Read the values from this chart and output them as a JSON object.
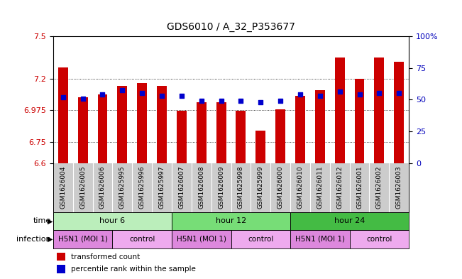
{
  "title": "GDS6010 / A_32_P353677",
  "samples": [
    "GSM1626004",
    "GSM1626005",
    "GSM1626006",
    "GSM1625995",
    "GSM1625996",
    "GSM1625997",
    "GSM1626007",
    "GSM1626008",
    "GSM1626009",
    "GSM1625998",
    "GSM1625999",
    "GSM1626000",
    "GSM1626010",
    "GSM1626011",
    "GSM1626012",
    "GSM1626001",
    "GSM1626002",
    "GSM1626003"
  ],
  "bar_values": [
    7.28,
    7.07,
    7.09,
    7.15,
    7.17,
    7.15,
    6.97,
    7.03,
    7.03,
    6.97,
    6.83,
    6.98,
    7.08,
    7.12,
    7.35,
    7.2,
    7.35,
    7.32
  ],
  "dot_values": [
    7.07,
    7.06,
    7.09,
    7.12,
    7.1,
    7.08,
    7.08,
    7.04,
    7.04,
    7.04,
    7.03,
    7.04,
    7.09,
    7.08,
    7.11,
    7.09,
    7.1,
    7.1
  ],
  "y_min": 6.6,
  "y_max": 7.5,
  "y_ticks_left": [
    6.6,
    6.75,
    6.975,
    7.2,
    7.5
  ],
  "y_right_labels": [
    "0",
    "25",
    "50",
    "75",
    "100%"
  ],
  "y_right_pcts": [
    0,
    25,
    50,
    75,
    100
  ],
  "bar_color": "#cc0000",
  "dot_color": "#0000cc",
  "time_groups": [
    {
      "label": "hour 6",
      "start": 0,
      "end": 6,
      "color": "#bbeebb"
    },
    {
      "label": "hour 12",
      "start": 6,
      "end": 12,
      "color": "#77dd77"
    },
    {
      "label": "hour 24",
      "start": 12,
      "end": 18,
      "color": "#44bb44"
    }
  ],
  "infection_groups": [
    {
      "label": "H5N1 (MOI 1)",
      "start": 0,
      "end": 3
    },
    {
      "label": "control",
      "start": 3,
      "end": 6
    },
    {
      "label": "H5N1 (MOI 1)",
      "start": 6,
      "end": 9
    },
    {
      "label": "control",
      "start": 9,
      "end": 12
    },
    {
      "label": "H5N1 (MOI 1)",
      "start": 12,
      "end": 15
    },
    {
      "label": "control",
      "start": 15,
      "end": 18
    }
  ],
  "infection_colors": [
    "#dd88dd",
    "#eeaaee"
  ],
  "sample_box_color": "#cccccc",
  "axis_color_left": "#cc0000",
  "axis_color_right": "#0000bb",
  "legend_red_label": "transformed count",
  "legend_blue_label": "percentile rank within the sample"
}
